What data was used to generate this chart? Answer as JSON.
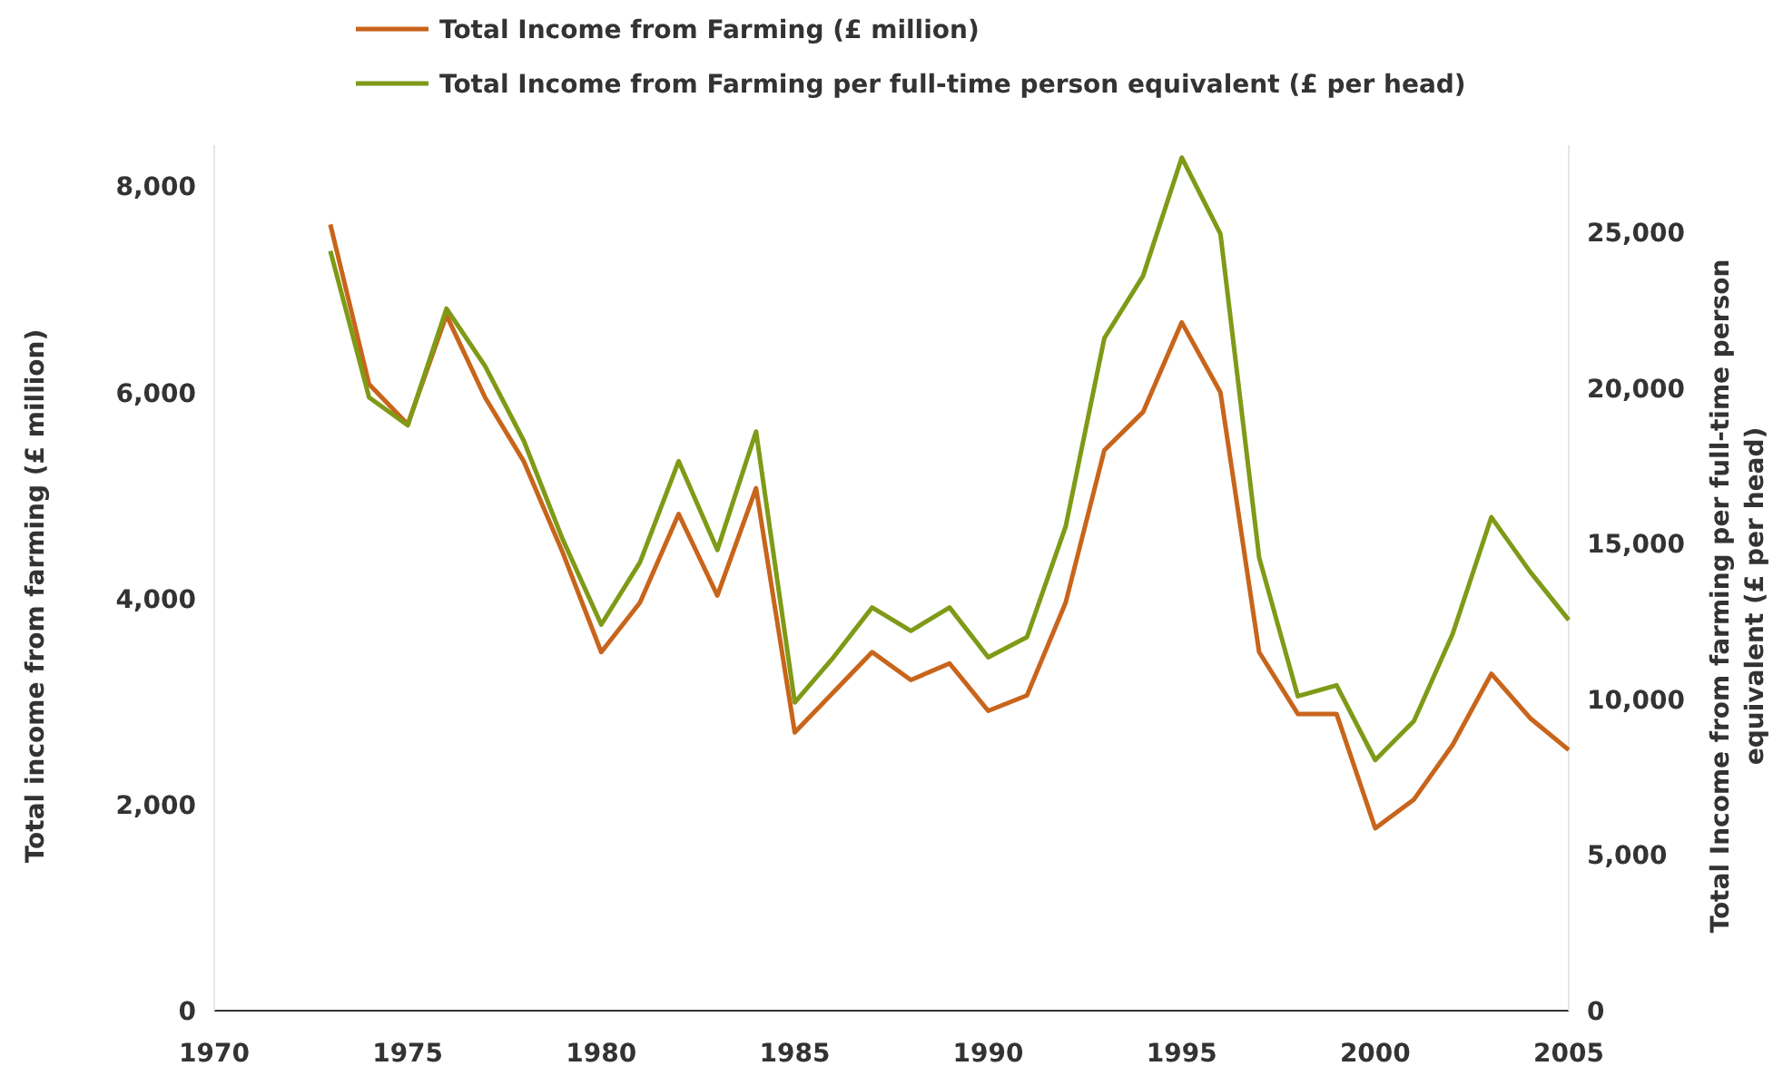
{
  "chart_data": {
    "type": "line",
    "xlabel": null,
    "ylabel": "Total income from farming (£ million)",
    "y2label": "Total Income from farming per full-time person equivalent (£ per head)",
    "x": [
      1973,
      1974,
      1975,
      1976,
      1977,
      1978,
      1979,
      1980,
      1981,
      1982,
      1983,
      1984,
      1985,
      1986,
      1987,
      1988,
      1989,
      1990,
      1991,
      1992,
      1993,
      1994,
      1995,
      1996,
      1997,
      1998,
      1999,
      2000,
      2001,
      2002,
      2003,
      2004,
      2005
    ],
    "series": [
      {
        "name": "Total Income from Farming (£ million)",
        "color": "#c8651b",
        "values": [
          7630,
          6080,
          5690,
          6750,
          5950,
          5330,
          4450,
          3480,
          3960,
          4820,
          4030,
          5070,
          2700,
          3090,
          3480,
          3210,
          3370,
          2910,
          3060,
          3960,
          5440,
          5810,
          6680,
          6000,
          3480,
          2880,
          2880,
          1770,
          2050,
          2580,
          3270,
          2840,
          2530
        ]
      },
      {
        "name": "Total Income from Farming per full-time person equivalent (£ per head)",
        "color": "#7f9a17",
        "axis": "y2",
        "values": [
          24400,
          19700,
          18800,
          22550,
          20700,
          18300,
          15150,
          12400,
          14400,
          17650,
          14800,
          18600,
          9900,
          11350,
          12950,
          12200,
          12950,
          11350,
          12000,
          15550,
          21600,
          23600,
          27400,
          24950,
          14550,
          10100,
          10450,
          8050,
          9300,
          12100,
          15850,
          14100,
          12550
        ]
      }
    ],
    "xlim": [
      1970,
      2005
    ],
    "xticks": [
      1970,
      1975,
      1980,
      1985,
      1990,
      1995,
      2000,
      2005
    ],
    "ylim": [
      0,
      8400
    ],
    "yticks": [
      {
        "value": 0,
        "label": "0"
      },
      {
        "value": 2000,
        "label": "2,000"
      },
      {
        "value": 4000,
        "label": "4,000"
      },
      {
        "value": 6000,
        "label": "6,000"
      },
      {
        "value": 8000,
        "label": "8,000"
      }
    ],
    "y2lim": [
      0,
      27800
    ],
    "y2ticks": [
      {
        "value": 0,
        "label": "0"
      },
      {
        "value": 5000,
        "label": "5,000"
      },
      {
        "value": 10000,
        "label": "10,000"
      },
      {
        "value": 15000,
        "label": "15,000"
      },
      {
        "value": 20000,
        "label": "20,000"
      },
      {
        "value": 25000,
        "label": "25,000"
      }
    ],
    "grid": false,
    "legend": "top",
    "marker": "none",
    "line_style": "solid"
  }
}
